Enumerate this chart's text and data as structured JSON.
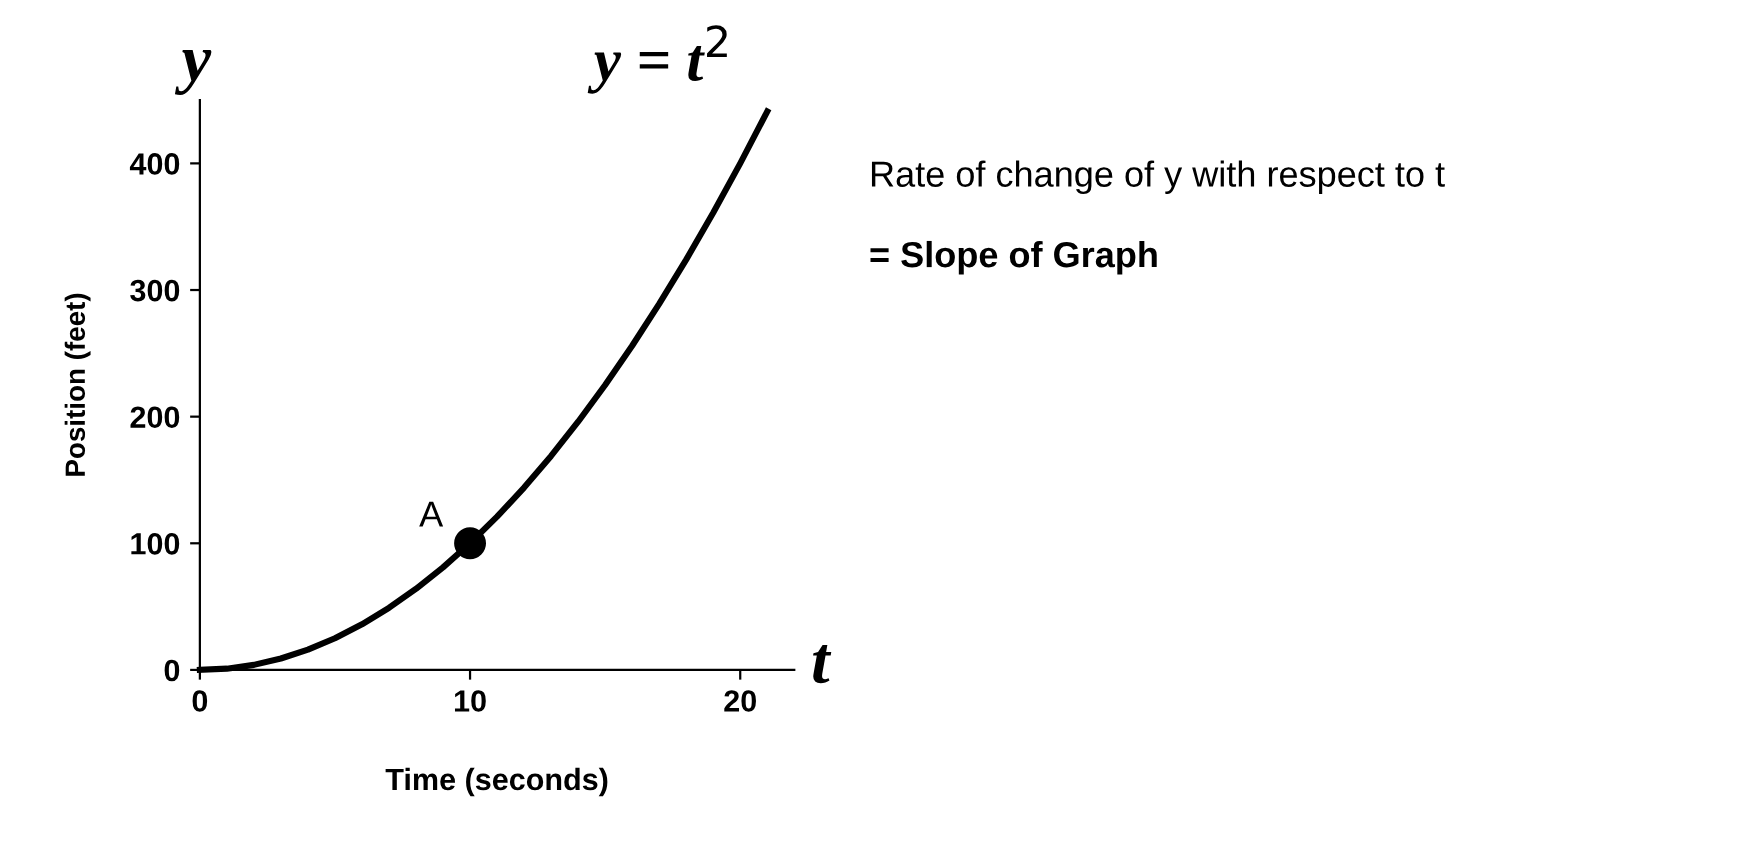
{
  "chart_data": {
    "type": "line",
    "title": "y = t$^{2}$",
    "xlabel": "Time (seconds)",
    "ylabel": "Position (feet)",
    "series": [
      {
        "color": "#000000",
        "marker": "none",
        "x": [
          0,
          1,
          2,
          3,
          4,
          5,
          6,
          7,
          8,
          9,
          10,
          11,
          12,
          13,
          14,
          15,
          16,
          17,
          18,
          19,
          20,
          21
        ],
        "values": [
          0,
          1,
          4,
          9,
          16,
          25,
          36,
          49,
          64,
          81,
          100,
          121,
          144,
          169,
          196,
          225,
          256,
          289,
          324,
          361,
          400,
          441
        ]
      },
      {
        "type": "scatter",
        "color": "#000000",
        "marker": "circle",
        "x": [
          10
        ],
        "values": [
          100
        ]
      }
    ],
    "annotations": [
      {
        "text": "A",
        "x": 10,
        "y": 100
      },
      "y",
      "t",
      "Rate of change of y with respect to t",
      "= Slope of Graph"
    ],
    "xlim": [
      0,
      22
    ],
    "ylim": [
      0,
      450
    ],
    "xticks": [
      0,
      10,
      20
    ],
    "yticks": [
      0,
      100,
      200,
      300,
      400
    ],
    "grid": false,
    "legend": false
  }
}
